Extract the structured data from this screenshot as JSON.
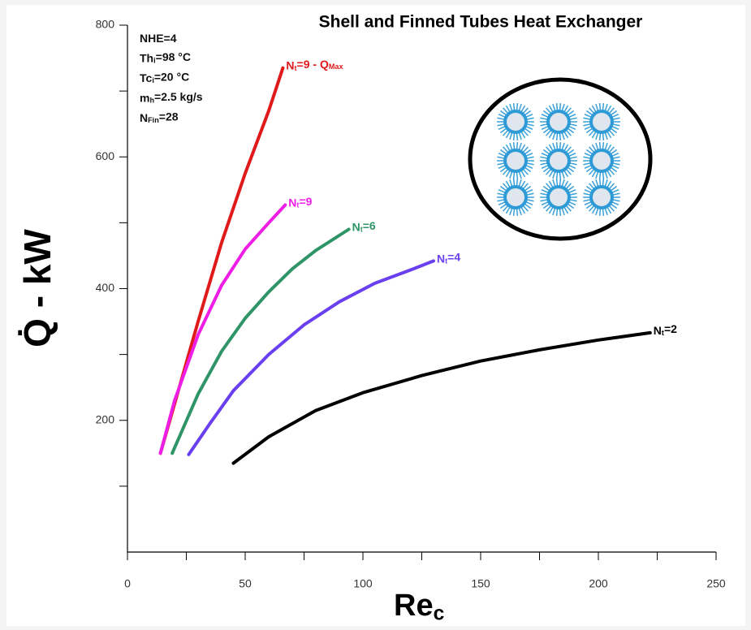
{
  "chart_data": {
    "type": "line",
    "title": "Shell and Finned Tubes Heat Exchanger",
    "x_label": [
      "Re",
      "c"
    ],
    "y_label": "Q̇ - kW",
    "xlim": [
      0,
      250
    ],
    "xticks": [
      0,
      50,
      100,
      150,
      200,
      250
    ],
    "xminorticks": [
      25,
      75,
      125,
      175,
      225
    ],
    "ylim": [
      0,
      800
    ],
    "yticks": [
      200,
      400,
      600,
      800
    ],
    "yminorticks": [
      100,
      300,
      500,
      700
    ],
    "annotations": [
      [
        "NHE=4"
      ],
      [
        "Th",
        "i",
        "=98 °C"
      ],
      [
        "Tc",
        "i",
        "=20 °C"
      ],
      [
        "m",
        "h",
        "=2.5 kg/s"
      ],
      [
        "N",
        "Fin",
        "=28"
      ]
    ],
    "series": [
      {
        "name": [
          "N",
          "t",
          "=9 - Q",
          "Max"
        ],
        "color": "#e0191b",
        "x": [
          14,
          20,
          30,
          40,
          50,
          60,
          66
        ],
        "values": [
          150,
          225,
          350,
          470,
          575,
          670,
          735
        ]
      },
      {
        "name": [
          "N",
          "t",
          "=9"
        ],
        "color": "#ee1ee6",
        "x": [
          14,
          20,
          30,
          40,
          50,
          60,
          67
        ],
        "values": [
          150,
          230,
          330,
          405,
          460,
          500,
          527
        ]
      },
      {
        "name": [
          "N",
          "t",
          "=6"
        ],
        "color": "#2f9467",
        "x": [
          19,
          30,
          40,
          50,
          60,
          70,
          80,
          94
        ],
        "values": [
          150,
          240,
          305,
          355,
          395,
          430,
          458,
          490
        ]
      },
      {
        "name": [
          "N",
          "t",
          "=4"
        ],
        "color": "#6a3ff0",
        "x": [
          26,
          35,
          45,
          60,
          75,
          90,
          105,
          120,
          130
        ],
        "values": [
          148,
          195,
          245,
          300,
          345,
          380,
          408,
          428,
          442
        ]
      },
      {
        "name": [
          "N",
          "t",
          "=2"
        ],
        "color": "#000000",
        "x": [
          45,
          60,
          80,
          100,
          125,
          150,
          175,
          200,
          222
        ],
        "values": [
          135,
          175,
          215,
          242,
          268,
          290,
          307,
          322,
          333
        ]
      }
    ]
  }
}
